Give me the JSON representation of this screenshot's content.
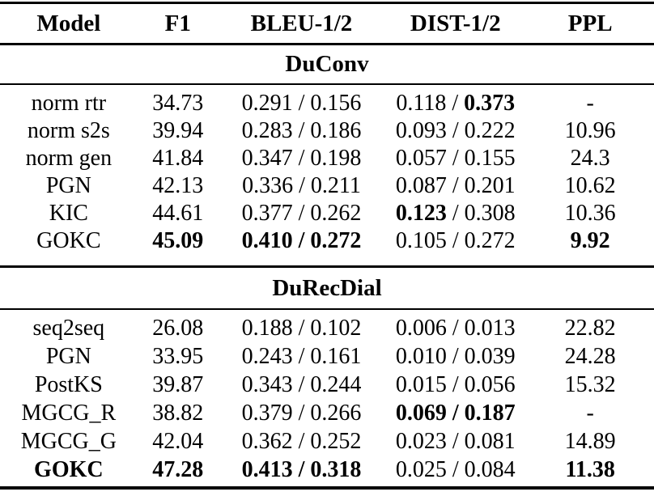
{
  "colors": {
    "background": "#ffffff",
    "text": "#000000",
    "rule": "#000000"
  },
  "table": {
    "headers": [
      "Model",
      "F1",
      "BLEU-1/2",
      "DIST-1/2",
      "PPL"
    ],
    "sections": [
      {
        "title": "DuConv",
        "rows": [
          [
            [
              {
                "t": "norm rtr"
              }
            ],
            [
              {
                "t": "34.73"
              }
            ],
            [
              {
                "t": "0.291 / 0.156"
              }
            ],
            [
              {
                "t": "0.118 / "
              },
              {
                "t": "0.373",
                "b": 1
              }
            ],
            [
              {
                "t": "-"
              }
            ]
          ],
          [
            [
              {
                "t": "norm s2s"
              }
            ],
            [
              {
                "t": "39.94"
              }
            ],
            [
              {
                "t": "0.283 / 0.186"
              }
            ],
            [
              {
                "t": "0.093 / 0.222"
              }
            ],
            [
              {
                "t": "10.96"
              }
            ]
          ],
          [
            [
              {
                "t": "norm gen"
              }
            ],
            [
              {
                "t": "41.84"
              }
            ],
            [
              {
                "t": "0.347 / 0.198"
              }
            ],
            [
              {
                "t": "0.057 / 0.155"
              }
            ],
            [
              {
                "t": "24.3"
              }
            ]
          ],
          [
            [
              {
                "t": "PGN"
              }
            ],
            [
              {
                "t": "42.13"
              }
            ],
            [
              {
                "t": "0.336 / 0.211"
              }
            ],
            [
              {
                "t": "0.087 / 0.201"
              }
            ],
            [
              {
                "t": "10.62"
              }
            ]
          ],
          [
            [
              {
                "t": "KIC"
              }
            ],
            [
              {
                "t": "44.61"
              }
            ],
            [
              {
                "t": "0.377 / 0.262"
              }
            ],
            [
              {
                "t": "0.123",
                "b": 1
              },
              {
                "t": " / 0.308"
              }
            ],
            [
              {
                "t": "10.36"
              }
            ]
          ],
          [
            [
              {
                "t": "GOKC"
              }
            ],
            [
              {
                "t": "45.09",
                "b": 1
              }
            ],
            [
              {
                "t": "0.410 / 0.272",
                "b": 1
              }
            ],
            [
              {
                "t": "0.105 / 0.272"
              }
            ],
            [
              {
                "t": "9.92",
                "b": 1
              }
            ]
          ]
        ]
      },
      {
        "title": "DuRecDial",
        "rows": [
          [
            [
              {
                "t": "seq2seq"
              }
            ],
            [
              {
                "t": "26.08"
              }
            ],
            [
              {
                "t": "0.188 / 0.102"
              }
            ],
            [
              {
                "t": "0.006 / 0.013"
              }
            ],
            [
              {
                "t": "22.82"
              }
            ]
          ],
          [
            [
              {
                "t": "PGN"
              }
            ],
            [
              {
                "t": "33.95"
              }
            ],
            [
              {
                "t": "0.243 / 0.161"
              }
            ],
            [
              {
                "t": "0.010 / 0.039"
              }
            ],
            [
              {
                "t": "24.28"
              }
            ]
          ],
          [
            [
              {
                "t": "PostKS"
              }
            ],
            [
              {
                "t": "39.87"
              }
            ],
            [
              {
                "t": "0.343 / 0.244"
              }
            ],
            [
              {
                "t": "0.015 / 0.056"
              }
            ],
            [
              {
                "t": "15.32"
              }
            ]
          ],
          [
            [
              {
                "t": "MGCG_R"
              }
            ],
            [
              {
                "t": "38.82"
              }
            ],
            [
              {
                "t": "0.379 / 0.266"
              }
            ],
            [
              {
                "t": "0.069 / 0.187",
                "b": 1
              }
            ],
            [
              {
                "t": "-"
              }
            ]
          ],
          [
            [
              {
                "t": "MGCG_G"
              }
            ],
            [
              {
                "t": "42.04"
              }
            ],
            [
              {
                "t": "0.362 / 0.252"
              }
            ],
            [
              {
                "t": "0.023 / 0.081"
              }
            ],
            [
              {
                "t": "14.89"
              }
            ]
          ],
          [
            [
              {
                "t": "GOKC",
                "b": 1
              }
            ],
            [
              {
                "t": "47.28",
                "b": 1
              }
            ],
            [
              {
                "t": "0.413 / 0.318",
                "b": 1
              }
            ],
            [
              {
                "t": "0.025 / 0.084"
              }
            ],
            [
              {
                "t": "11.38",
                "b": 1
              }
            ]
          ]
        ]
      }
    ]
  }
}
